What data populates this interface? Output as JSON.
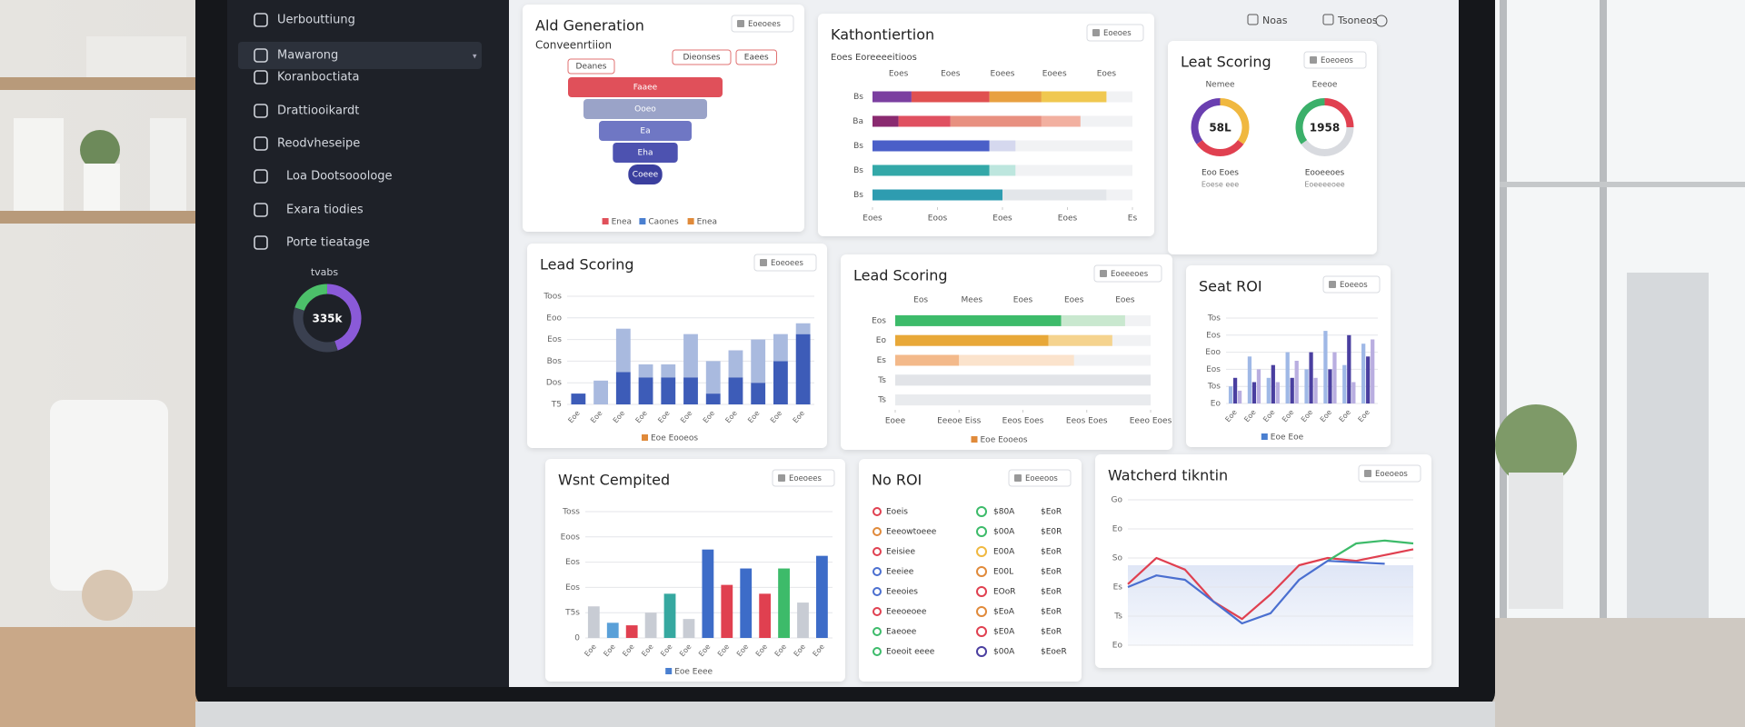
{
  "sidebar": {
    "items": [
      "Uerbouttiung",
      "Mawarong",
      "Koranboctiata",
      "Drattiooikardt",
      "Reodvheseipe",
      "Loa Dootsooologe",
      "Exara tiodies",
      "Porte tieatage"
    ],
    "donut": {
      "label": "tvabs",
      "center": "335k",
      "segments": [
        {
          "color": "#8a5ad8",
          "value": 45
        },
        {
          "color": "#3a4050",
          "value": 35
        },
        {
          "color": "#4cc06a",
          "value": 20
        }
      ]
    }
  },
  "header": {
    "actions": [
      "Noas",
      "Tsoneos"
    ]
  },
  "panels": [
    {
      "kind": "funnel",
      "title": "Ald Generation",
      "subtitle": "Conveenrtiion",
      "button": "Eoeoees",
      "tags": [
        "Deanes",
        "Dieonses",
        "Eaees"
      ],
      "xlim": [
        0,
        100
      ],
      "stages": [
        {
          "label": "Faaee",
          "value": 100,
          "color": "#e0505a"
        },
        {
          "label": "Ooeo",
          "value": 80,
          "color": "#9aa3c8"
        },
        {
          "label": "Ea",
          "value": 60,
          "color": "#6f77c4"
        },
        {
          "label": "Eha",
          "value": 42,
          "color": "#4d52b0"
        },
        {
          "label": "Coeee",
          "value": 22,
          "color": "#3b3f9e"
        }
      ],
      "legend": [
        {
          "label": "Enea",
          "color": "#e0505a"
        },
        {
          "label": "Caones",
          "color": "#4a7fd0"
        },
        {
          "label": "Enea",
          "color": "#e08a3a"
        }
      ]
    },
    {
      "kind": "hbars",
      "title": "Kathontiertion",
      "subtitle": "Eoes Eoreeeeitioos",
      "button": "Eoeoes",
      "header": [
        "Eoes",
        "Eoes",
        "Eoees",
        "Eoees",
        "Eoes"
      ],
      "xlim": [
        0,
        100
      ],
      "xticks": [
        {
          "value": 0,
          "label": "Eoes"
        },
        {
          "value": 25,
          "label": "Eoos"
        },
        {
          "value": 50,
          "label": "Eoes"
        },
        {
          "value": 75,
          "label": "Eoes"
        },
        {
          "value": 100,
          "label": "Es"
        }
      ],
      "rows": [
        {
          "label": "Bs",
          "segments": [
            {
              "color": "#7b3fa0",
              "value": 15
            },
            {
              "color": "#e05050",
              "value": 30
            },
            {
              "color": "#e8a040",
              "value": 20
            },
            {
              "color": "#f0c850",
              "value": 25
            }
          ]
        },
        {
          "label": "Ba",
          "segments": [
            {
              "color": "#8a2a70",
              "value": 10
            },
            {
              "color": "#e05060",
              "value": 20
            },
            {
              "color": "#e89080",
              "value": 35
            },
            {
              "color": "#f2b0a0",
              "value": 15
            }
          ]
        },
        {
          "label": "Bs",
          "segments": [
            {
              "color": "#4a5fc8",
              "value": 45
            },
            {
              "color": "#d5d8ee",
              "value": 10
            }
          ]
        },
        {
          "label": "Bs",
          "segments": [
            {
              "color": "#33a8a8",
              "value": 45
            },
            {
              "color": "#bde6de",
              "value": 10
            }
          ]
        },
        {
          "label": "Bs",
          "segments": [
            {
              "color": "#2e9cb0",
              "value": 50
            },
            {
              "color": "#e3e6ea",
              "value": 40
            }
          ]
        }
      ]
    },
    {
      "kind": "donuts",
      "title": "Leat Scoring",
      "button": "Eoeoeos",
      "items": [
        {
          "label": "Nemee",
          "center": "58L",
          "caption": "Eoo Eoes",
          "sub": "Eoese eee",
          "segments": [
            {
              "color": "#f0b840",
              "value": 35
            },
            {
              "color": "#e04050",
              "value": 30
            },
            {
              "color": "#6a3fb0",
              "value": 35
            }
          ]
        },
        {
          "label": "Eeeoe",
          "center": "1958",
          "caption": "Eooeeoes",
          "sub": "Eoeeeeoee",
          "segments": [
            {
              "color": "#e04050",
              "value": 25
            },
            {
              "color": "#d8dadf",
              "value": 40
            },
            {
              "color": "#3bb06a",
              "value": 35
            }
          ]
        }
      ]
    },
    {
      "kind": "bars",
      "stacked": true,
      "title": "Lead Scoring",
      "button": "Eoeoees",
      "ylim": [
        0,
        100
      ],
      "yticks": [
        {
          "value": 0,
          "label": "T5"
        },
        {
          "value": 20,
          "label": "Dos"
        },
        {
          "value": 40,
          "label": "Bos"
        },
        {
          "value": 60,
          "label": "Eos"
        },
        {
          "value": 80,
          "label": "Eoo"
        },
        {
          "value": 100,
          "label": "Toos"
        }
      ],
      "categories": [
        "Eoe",
        "Eoe",
        "Eoe",
        "Eoe",
        "Eoe",
        "Eoe",
        "Eoe",
        "Eoe",
        "Eoe",
        "Eoe",
        "Eoe"
      ],
      "series": [
        {
          "color": "#3d5cb8",
          "values": [
            10,
            0,
            30,
            25,
            25,
            25,
            10,
            25,
            20,
            40,
            65
          ]
        },
        {
          "color": "#a9badf",
          "values": [
            0,
            22,
            40,
            12,
            12,
            40,
            30,
            25,
            40,
            25,
            10
          ]
        }
      ],
      "legend": [
        {
          "label": "Eoe Eooeos",
          "color": "#e08a3a"
        }
      ]
    },
    {
      "kind": "hbars",
      "title": "Lead Scoring",
      "button": "Eoeeeoes",
      "header": [
        "Eos",
        "Mees",
        "Eoes",
        "Eoes",
        "Eoes"
      ],
      "xlim": [
        0,
        100
      ],
      "xticks": [
        {
          "value": 0,
          "label": "Eoee"
        },
        {
          "value": 25,
          "label": "Eeeoe Eiss"
        },
        {
          "value": 50,
          "label": "Eeos Eoes"
        },
        {
          "value": 75,
          "label": "Eeos Eoes"
        },
        {
          "value": 100,
          "label": "Eeeo Eoes"
        }
      ],
      "rows": [
        {
          "label": "Eos",
          "segments": [
            {
              "color": "#3dbb6a",
              "value": 65
            },
            {
              "color": "#c9e8cf",
              "value": 25
            }
          ]
        },
        {
          "label": "Eo",
          "segments": [
            {
              "color": "#e8a838",
              "value": 60
            },
            {
              "color": "#f5d38e",
              "value": 25
            }
          ]
        },
        {
          "label": "Es",
          "segments": [
            {
              "color": "#f3b98a",
              "value": 25
            },
            {
              "color": "#fbe3cc",
              "value": 45
            }
          ]
        },
        {
          "label": "Ts",
          "segments": [
            {
              "color": "#e2e4e8",
              "value": 100
            }
          ]
        },
        {
          "label": "Ts",
          "segments": [
            {
              "color": "#e9ebee",
              "value": 100
            }
          ]
        }
      ],
      "legend": [
        {
          "label": "Eoe Eooeos",
          "color": "#e08a3a"
        }
      ]
    },
    {
      "kind": "bars",
      "title": "Seat ROI",
      "button": "Eoeeos",
      "ylim": [
        0,
        100
      ],
      "yticks": [
        {
          "value": 0,
          "label": "Eo"
        },
        {
          "value": 20,
          "label": "Tos"
        },
        {
          "value": 40,
          "label": "Eos"
        },
        {
          "value": 60,
          "label": "Eoo"
        },
        {
          "value": 80,
          "label": "Eos"
        },
        {
          "value": 100,
          "label": "Tos"
        }
      ],
      "categories": [
        "Eoe",
        "Eoe",
        "Eoe",
        "Eoe",
        "Eoe",
        "Eoe",
        "Eoe",
        "Eoe"
      ],
      "series": [
        {
          "color": "#9fb8e6",
          "values": [
            20,
            55,
            30,
            60,
            40,
            85,
            45,
            70
          ]
        },
        {
          "color": "#4a3fa0",
          "values": [
            30,
            25,
            45,
            30,
            60,
            40,
            80,
            55
          ]
        },
        {
          "color": "#b9aee0",
          "values": [
            15,
            40,
            25,
            50,
            30,
            60,
            25,
            75
          ]
        }
      ],
      "legend": [
        {
          "label": "Eoe Eoe",
          "color": "#4a7fd0"
        }
      ]
    },
    {
      "kind": "bars",
      "title": "Wsnt Cempited",
      "button": "Eoeoees",
      "ylim": [
        0,
        100
      ],
      "yticks": [
        0,
        {
          "value": 20,
          "label": "T5s"
        },
        {
          "value": 40,
          "label": "Eos"
        },
        {
          "value": 60,
          "label": "Eos"
        },
        {
          "value": 80,
          "label": "Eoos"
        },
        {
          "value": 100,
          "label": "Toss"
        }
      ],
      "categories": [
        "Eoe",
        "Eoe",
        "Eoe",
        "Eoe",
        "Eoe",
        "Eoe",
        "Eoe",
        "Eoe",
        "Eoe",
        "Eoe",
        "Eoe",
        "Eoe",
        "Eoe"
      ],
      "series": [
        {
          "values": [
            25,
            12,
            10,
            20,
            35,
            15,
            70,
            42,
            55,
            35,
            55,
            28,
            65
          ],
          "colors": [
            "#c8ccd4",
            "#5aa0d8",
            "#e04050",
            "#c8ccd4",
            "#36a8a0",
            "#c8ccd4",
            "#3d6cc8",
            "#e04050",
            "#3d6cc8",
            "#e04050",
            "#3dbb6a",
            "#c8ccd4",
            "#3d6cc8"
          ]
        }
      ],
      "legend": [
        {
          "label": "Eoe Eeee",
          "color": "#4a7fd0"
        }
      ]
    },
    {
      "kind": "table",
      "title": "No ROI",
      "button": "Eoeeoos",
      "rows": [
        {
          "name": "Eoeis",
          "color": "#e04050",
          "icon": "#3dbb6a",
          "v1": "$80A",
          "v2": "$EoR"
        },
        {
          "name": "Eeeowtoeee",
          "color": "#e08a3a",
          "icon": "#3dbb6a",
          "v1": "$00A",
          "v2": "$E0R"
        },
        {
          "name": "Eeisiee",
          "color": "#e04050",
          "icon": "#f0b840",
          "v1": "E00A",
          "v2": "$EoR"
        },
        {
          "name": "Eeeiee",
          "color": "#4a6fd0",
          "icon": "#e08a3a",
          "v1": "E00L",
          "v2": "$EoR"
        },
        {
          "name": "Eeeoies",
          "color": "#4a6fd0",
          "icon": "#e04050",
          "v1": "EOoR",
          "v2": "$EoR"
        },
        {
          "name": "Eeeoeoee",
          "color": "#e04050",
          "icon": "#e08a3a",
          "v1": "$EoA",
          "v2": "$EoR"
        },
        {
          "name": "Eaeoee",
          "color": "#3dbb6a",
          "icon": "#e04050",
          "v1": "$E0A",
          "v2": "$EoR"
        },
        {
          "name": "Eoeoit eeee",
          "color": "#3dbb6a",
          "icon": "#4a3fa0",
          "v1": "$00A",
          "v2": "$EoeR"
        }
      ]
    },
    {
      "kind": "lines",
      "title": "Watcherd tikntin",
      "button": "Eoeoeos",
      "xlim": [
        0,
        10
      ],
      "ylim": [
        0,
        100
      ],
      "x": [
        0,
        1,
        2,
        3,
        4,
        5,
        6,
        7,
        8,
        9,
        10
      ],
      "yticks": [
        {
          "value": 0,
          "label": "Eo"
        },
        {
          "value": 20,
          "label": "Ts"
        },
        {
          "value": 40,
          "label": "Es"
        },
        {
          "value": 60,
          "label": "So"
        },
        {
          "value": 80,
          "label": "Eo"
        },
        {
          "value": 100,
          "label": "Go"
        }
      ],
      "series": [
        {
          "color": "#e04050",
          "values": [
            42,
            60,
            52,
            30,
            18,
            35,
            55,
            60,
            58,
            62,
            66
          ]
        },
        {
          "color": "#3dbb6a",
          "values": [
            null,
            null,
            null,
            null,
            null,
            null,
            null,
            58,
            70,
            72,
            70
          ]
        },
        {
          "color": "#4a6fd0",
          "values": [
            40,
            48,
            45,
            30,
            15,
            22,
            45,
            58,
            57,
            56,
            null
          ]
        }
      ]
    }
  ]
}
